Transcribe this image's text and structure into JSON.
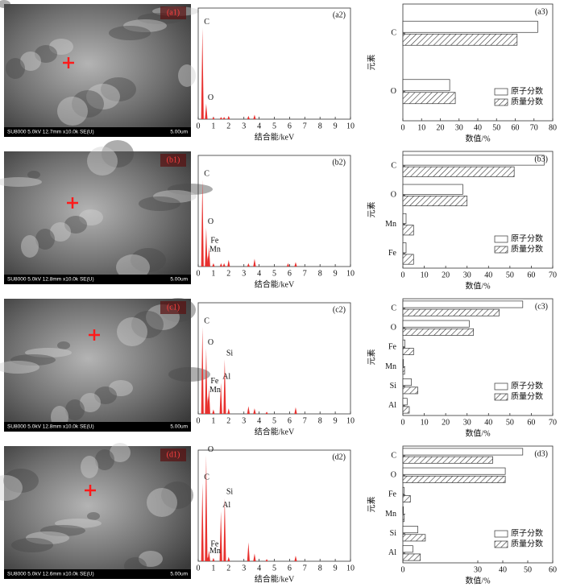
{
  "images": [
    {
      "label": "(a1)",
      "caption": "SU8000 5.0kV 12.7mm x10.0k SE(U)",
      "scale": "5.00um"
    },
    {
      "label": "(b1)",
      "caption": "SU8000 5.0kV 12.8mm x10.0k SE(U)",
      "scale": "5.00um"
    },
    {
      "label": "(c1)",
      "caption": "SU8000 5.0kV 12.8mm x10.0k SE(U)",
      "scale": "5.00um"
    },
    {
      "label": "(d1)",
      "caption": "SU8000 5.0kV 12.6mm x10.0k SE(U)",
      "scale": "5.00um"
    }
  ],
  "chart_data": [
    {
      "type": "spectrum",
      "panel_label": "(a2)",
      "xlabel": "结合能/keV",
      "xlim": [
        0,
        10
      ],
      "xticks": [
        0,
        1,
        2,
        3,
        4,
        5,
        6,
        7,
        8,
        9,
        10
      ],
      "ylim": [
        0,
        100
      ],
      "color": "#e8312f",
      "x": [
        0.277,
        0.525,
        1.0,
        1.5,
        1.7,
        2.0,
        3.3,
        3.7
      ],
      "values": [
        82,
        14,
        2,
        2,
        2,
        3,
        3,
        4
      ],
      "peak_labels": [
        "C",
        "O",
        null,
        null,
        null,
        null,
        null,
        null
      ]
    },
    {
      "type": "hbar",
      "panel_label": "(a3)",
      "xlabel": "数值/%",
      "ylabel": "元素",
      "categories": [
        "C",
        "O"
      ],
      "xlim": [
        0,
        80
      ],
      "xticks": [
        0,
        10,
        20,
        30,
        40,
        50,
        60,
        70,
        80
      ],
      "legend": "lower right",
      "series": [
        {
          "name": "原子分数",
          "color": "#ffffff",
          "hatch": false,
          "values": [
            72,
            25
          ]
        },
        {
          "name": "质量分数",
          "color": "#ffffff",
          "hatch": true,
          "values": [
            61,
            28
          ]
        }
      ]
    },
    {
      "type": "spectrum",
      "panel_label": "(b2)",
      "xlabel": "结合能/keV",
      "xlim": [
        0,
        10
      ],
      "xticks": [
        0,
        1,
        2,
        3,
        4,
        5,
        6,
        7,
        8,
        9,
        10
      ],
      "ylim": [
        0,
        100
      ],
      "color": "#e8312f",
      "x": [
        0.277,
        0.525,
        0.705,
        0.637,
        1.0,
        1.5,
        1.7,
        2.0,
        3.3,
        3.7,
        5.9,
        6.4
      ],
      "values": [
        78,
        35,
        18,
        10,
        3,
        3,
        3,
        6,
        3,
        7,
        3,
        4
      ],
      "peak_labels": [
        "C",
        "O",
        "Fe",
        "Mn",
        null,
        null,
        null,
        null,
        null,
        null,
        null,
        null
      ]
    },
    {
      "type": "hbar",
      "panel_label": "(b3)",
      "xlabel": "数值/%",
      "ylabel": "元素",
      "categories": [
        "C",
        "O",
        "Mn",
        "Fe"
      ],
      "xlim": [
        0,
        70
      ],
      "xticks": [
        0,
        10,
        20,
        30,
        40,
        50,
        60,
        70
      ],
      "legend": "lower right",
      "series": [
        {
          "name": "原子分数",
          "color": "#ffffff",
          "hatch": false,
          "values": [
            66,
            28,
            1.5,
            1.5
          ]
        },
        {
          "name": "质量分数",
          "color": "#ffffff",
          "hatch": true,
          "values": [
            52,
            30,
            5,
            5
          ]
        }
      ]
    },
    {
      "type": "spectrum",
      "panel_label": "(c2)",
      "xlabel": "结合能/keV",
      "xlim": [
        0,
        10
      ],
      "xticks": [
        0,
        1,
        2,
        3,
        4,
        5,
        6,
        7,
        8,
        9,
        10
      ],
      "ylim": [
        0,
        100
      ],
      "color": "#e8312f",
      "x": [
        0.277,
        0.525,
        0.705,
        0.637,
        1.49,
        1.74,
        1.0,
        2.0,
        3.3,
        3.7,
        4.5,
        6.4
      ],
      "values": [
        78,
        59,
        24,
        16,
        28,
        49,
        4,
        5,
        7,
        5,
        2,
        6
      ],
      "peak_labels": [
        "C",
        "O",
        "Fe",
        "Mn",
        "Al",
        "Si",
        null,
        null,
        null,
        null,
        null,
        null
      ]
    },
    {
      "type": "hbar",
      "panel_label": "(c3)",
      "xlabel": "数值/%",
      "ylabel": "元素",
      "categories": [
        "C",
        "O",
        "Fe",
        "Mn",
        "Si",
        "Al"
      ],
      "xlim": [
        0,
        70
      ],
      "xticks": [
        0,
        10,
        20,
        30,
        40,
        50,
        60,
        70
      ],
      "legend": "lower right",
      "series": [
        {
          "name": "原子分数",
          "color": "#ffffff",
          "hatch": false,
          "values": [
            56,
            31,
            1,
            0.3,
            4,
            2
          ]
        },
        {
          "name": "质量分数",
          "color": "#ffffff",
          "hatch": true,
          "values": [
            45,
            33,
            5,
            0.8,
            7,
            3
          ]
        }
      ]
    },
    {
      "type": "spectrum",
      "panel_label": "(d2)",
      "xlabel": "结合能/keV",
      "xlim": [
        0,
        10
      ],
      "xticks": [
        0,
        1,
        2,
        3,
        4,
        5,
        6,
        7,
        8,
        9,
        10
      ],
      "ylim": [
        0,
        100
      ],
      "color": "#e8312f",
      "x": [
        0.525,
        0.277,
        1.49,
        1.74,
        0.705,
        0.637,
        1.0,
        2.0,
        3.3,
        3.7,
        4.5,
        6.4
      ],
      "values": [
        95,
        70,
        45,
        57,
        10,
        4,
        3,
        4,
        17,
        7,
        2,
        5
      ],
      "peak_labels": [
        "O",
        "C",
        "Al",
        "Si",
        "Fe",
        "Mn",
        null,
        null,
        null,
        null,
        null,
        null
      ]
    },
    {
      "type": "hbar",
      "panel_label": "(d3)",
      "xlabel": "数值/%",
      "ylabel": "元素",
      "categories": [
        "C",
        "O",
        "Fe",
        "Mn",
        "Si",
        "Al"
      ],
      "xlim": [
        0,
        60
      ],
      "xticks": [
        0,
        30,
        40,
        50,
        60
      ],
      "legend": "lower right",
      "series": [
        {
          "name": "原子分数",
          "color": "#ffffff",
          "hatch": false,
          "values": [
            48,
            41,
            0.5,
            0.2,
            6,
            4
          ]
        },
        {
          "name": "质量分数",
          "color": "#ffffff",
          "hatch": true,
          "values": [
            36,
            41,
            3,
            0.5,
            9,
            7
          ]
        }
      ]
    }
  ]
}
